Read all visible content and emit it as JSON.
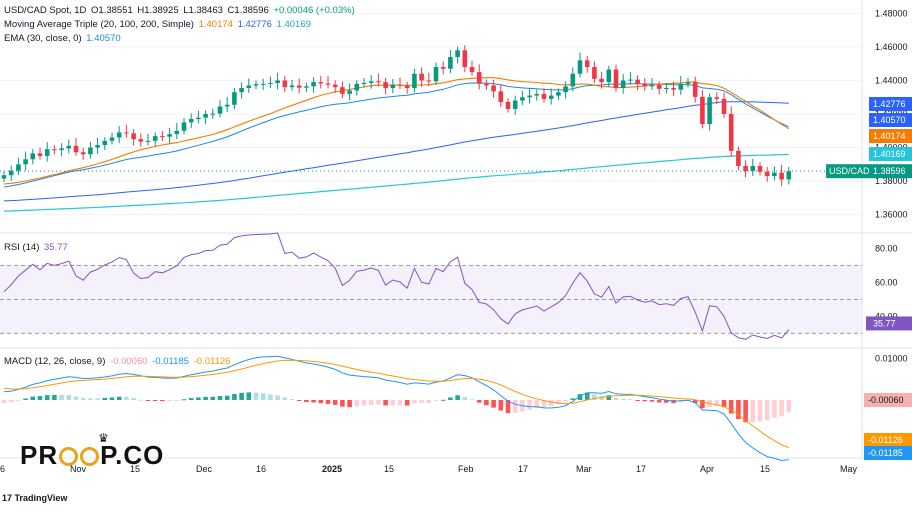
{
  "chart_data": [
    {
      "type": "candlestick",
      "title": "USD/CAD Spot, 1D",
      "ohlc": {
        "O": "1.38551",
        "H": "1.38925",
        "L": "1.38463",
        "C": "1.38596",
        "change": "+0.00046 (+0.03%)"
      },
      "ylim": [
        1.35,
        1.49
      ],
      "yticks": [
        "1.48000",
        "1.46000",
        "1.44000",
        "1.42000",
        "1.40000",
        "1.38000",
        "1.36000"
      ],
      "price_tag": {
        "label": "USD/CAD",
        "value": "1.38596"
      },
      "x_ticks": [
        "6",
        "Nov",
        "15",
        "Dec",
        "16",
        "2025",
        "15",
        "Feb",
        "17",
        "Mar",
        "17",
        "Apr",
        "15",
        "May"
      ],
      "closes": [
        1.3835,
        1.3862,
        1.39,
        1.393,
        1.3965,
        1.395,
        1.399,
        1.3985,
        1.3995,
        1.401,
        1.3972,
        1.396,
        1.4,
        1.4015,
        1.404,
        1.406,
        1.409,
        1.4085,
        1.405,
        1.4035,
        1.404,
        1.4068,
        1.4065,
        1.408,
        1.41,
        1.415,
        1.417,
        1.4178,
        1.42,
        1.4202,
        1.4245,
        1.4255,
        1.433,
        1.4355,
        1.437,
        1.4378,
        1.438,
        1.4385,
        1.44,
        1.436,
        1.437,
        1.4357,
        1.4365,
        1.439,
        1.4382,
        1.4375,
        1.436,
        1.432,
        1.434,
        1.438,
        1.4385,
        1.4395,
        1.439,
        1.4355,
        1.4375,
        1.437,
        1.4355,
        1.444,
        1.44,
        1.4395,
        1.448,
        1.447,
        1.454,
        1.458,
        1.448,
        1.445,
        1.438,
        1.437,
        1.4335,
        1.4272,
        1.423,
        1.428,
        1.43,
        1.431,
        1.432,
        1.429,
        1.431,
        1.433,
        1.4365,
        1.444,
        1.452,
        1.448,
        1.441,
        1.439,
        1.4465,
        1.4355,
        1.44,
        1.4405,
        1.438,
        1.4365,
        1.4373,
        1.435,
        1.4355,
        1.4345,
        1.438,
        1.439,
        1.4302,
        1.414,
        1.43,
        1.429,
        1.42,
        1.398,
        1.389,
        1.386,
        1.389,
        1.3855,
        1.383,
        1.385,
        1.381,
        1.3859
      ],
      "series": [
        {
          "name": "Moving Average Triple (20, 100, 200, Simple)",
          "values": [
            "1.40174",
            "1.42776",
            "1.40169"
          ],
          "colors": [
            "#f57c00",
            "#2962ff",
            "#26c6da"
          ]
        },
        {
          "name": "EMA (30, close, 0)",
          "values": [
            "1.40570"
          ],
          "colors": [
            "#1e88e5"
          ]
        }
      ],
      "right_labels": [
        {
          "value": "1.42776",
          "color": "#2962ff"
        },
        {
          "value": "1.40570",
          "color": "#2962ff"
        },
        {
          "value": "1.40174",
          "color": "#f57c00"
        },
        {
          "value": "1.40169",
          "color": "#26c6da"
        }
      ]
    },
    {
      "type": "line",
      "title": "RSI (14)",
      "value": "35.77",
      "ylim": [
        26,
        88
      ],
      "yticks": [
        "80.00",
        "60.00",
        "40.00"
      ],
      "band": [
        30,
        70
      ],
      "midline": 50,
      "color": "#7e57c2"
    },
    {
      "type": "bar+line",
      "title": "MACD (12, 26, close, 9)",
      "values": [
        "-0.00060",
        "-0.01185",
        "-0.01126"
      ],
      "colors": [
        "#f7b0b0",
        "#2196f3",
        "#ff9800"
      ],
      "yticks": [
        "0.01000",
        "-0.01000"
      ],
      "right_labels": [
        {
          "value": "-0.00060",
          "color": "#f7b0b0"
        },
        {
          "value": "-0.01126",
          "color": "#ff9800"
        },
        {
          "value": "-0.01185",
          "color": "#2196f3"
        }
      ]
    }
  ],
  "brand": {
    "logo": "PR  P.CO",
    "platform": "TradingView"
  }
}
